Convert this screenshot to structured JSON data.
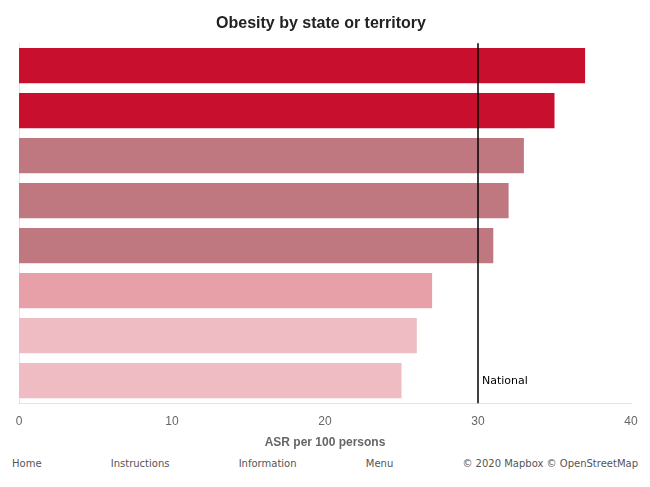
{
  "chart_data": {
    "type": "bar",
    "orientation": "horizontal",
    "title": "Obesity by state or territory",
    "xlabel": "ASR per 100 persons",
    "categories": [
      null,
      null,
      null,
      null,
      null,
      null,
      null,
      null
    ],
    "values": [
      37,
      35,
      33,
      32,
      31,
      27,
      26,
      25
    ],
    "colors": [
      "#c8102e",
      "#c8102e",
      "#c07880",
      "#c07880",
      "#c07880",
      "#e8a0a8",
      "#f0bcc4",
      "#f0bcc4"
    ],
    "xlim": [
      0,
      40
    ],
    "xticks": [
      0,
      10,
      20,
      30,
      40
    ],
    "grid": false,
    "tick_labels": "x",
    "annotations": [
      {
        "text": "National",
        "x": 30
      },
      {
        "text": "Home"
      },
      {
        "text": "Instructions"
      },
      {
        "text": "Information"
      },
      {
        "text": "Menu"
      },
      {
        "text": "© 2020 Mapbox © OpenStreetMap"
      }
    ]
  }
}
